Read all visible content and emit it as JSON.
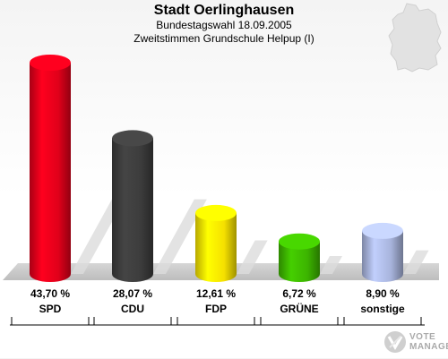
{
  "chart_data": {
    "type": "bar",
    "title": "Stadt Oerlinghausen",
    "subtitle": "Bundestagswahl 18.09.2005",
    "subtitle2": "Zweitstimmen Grundschule Helpup (I)",
    "categories": [
      "SPD",
      "CDU",
      "FDP",
      "GRÜNE",
      "sonstige"
    ],
    "values": [
      43.7,
      28.07,
      12.61,
      6.72,
      8.9
    ],
    "value_labels": [
      "43,70 %",
      "28,07 %",
      "12,61 %",
      "6,72 %",
      "8,90 %"
    ],
    "colors": [
      "#e0001a",
      "#3c3c3c",
      "#f5e000",
      "#3cb400",
      "#a8b4dc"
    ],
    "grid": false,
    "legend": "none"
  },
  "logo": {
    "line1": "VOTE",
    "line2": "MANAGER"
  }
}
